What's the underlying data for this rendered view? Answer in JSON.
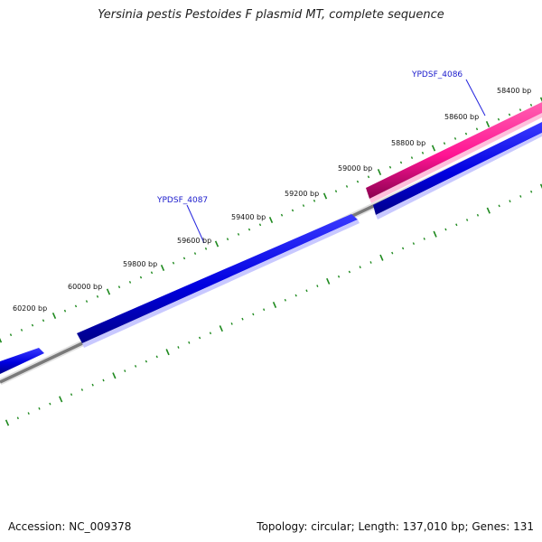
{
  "title": "Yersinia pestis Pestoides F plasmid MT, complete sequence",
  "footer": {
    "accession": "Accession: NC_009378",
    "summary": "Topology: circular; Length: 137,010 bp; Genes: 131"
  },
  "colors": {
    "forward_gene": "#0000e6",
    "reverse_gene": "#ff1493",
    "backbone": "#808080",
    "ticks": "#1f8a1f",
    "gene_label": "#1a1acc",
    "leader": "#2222dd"
  },
  "ruler": {
    "labels": [
      "58400 bp",
      "58600 bp",
      "58800 bp",
      "59000 bp",
      "59200 bp",
      "59400 bp",
      "59600 bp",
      "59800 bp",
      "60000 bp",
      "60200 bp"
    ]
  },
  "genes": [
    {
      "label": "YPDSF_4086"
    },
    {
      "label": "YPDSF_4087"
    }
  ]
}
